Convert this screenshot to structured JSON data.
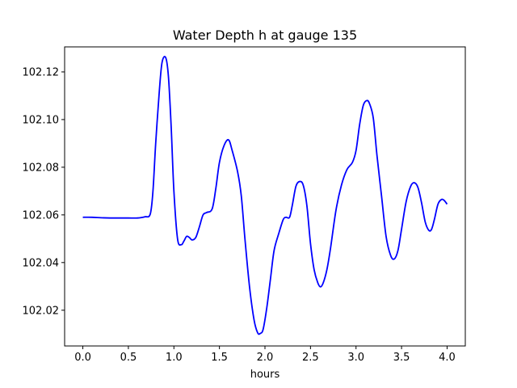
{
  "chart_data": {
    "type": "line",
    "title": "Water Depth h at gauge 135",
    "xlabel": "hours",
    "ylabel": "",
    "xlim": [
      -0.2,
      4.2
    ],
    "ylim": [
      102.005,
      102.1305
    ],
    "xticks": [
      0.0,
      0.5,
      1.0,
      1.5,
      2.0,
      2.5,
      3.0,
      3.5,
      4.0
    ],
    "xtick_labels": [
      "0.0",
      "0.5",
      "1.0",
      "1.5",
      "2.0",
      "2.5",
      "3.0",
      "3.5",
      "4.0"
    ],
    "yticks": [
      102.02,
      102.04,
      102.06,
      102.08,
      102.1,
      102.12
    ],
    "ytick_labels": [
      "102.02",
      "102.04",
      "102.06",
      "102.08",
      "102.10",
      "102.12"
    ],
    "grid": false,
    "series": [
      {
        "color": "#0000ff",
        "x": [
          0.0,
          0.1,
          0.2,
          0.3,
          0.4,
          0.5,
          0.6,
          0.68,
          0.74,
          0.77,
          0.8,
          0.84,
          0.87,
          0.91,
          0.94,
          0.97,
          1.0,
          1.04,
          1.08,
          1.11,
          1.14,
          1.17,
          1.2,
          1.24,
          1.28,
          1.32,
          1.36,
          1.42,
          1.46,
          1.5,
          1.55,
          1.6,
          1.64,
          1.7,
          1.74,
          1.78,
          1.83,
          1.88,
          1.92,
          1.95,
          1.98,
          2.02,
          2.06,
          2.1,
          2.15,
          2.2,
          2.23,
          2.27,
          2.3,
          2.34,
          2.38,
          2.42,
          2.46,
          2.5,
          2.54,
          2.58,
          2.61,
          2.64,
          2.68,
          2.72,
          2.78,
          2.84,
          2.9,
          2.96,
          3.0,
          3.04,
          3.08,
          3.12,
          3.15,
          3.19,
          3.23,
          3.28,
          3.33,
          3.38,
          3.42,
          3.46,
          3.5,
          3.55,
          3.6,
          3.64,
          3.68,
          3.72,
          3.76,
          3.8,
          3.83,
          3.86,
          3.9,
          3.94,
          3.97,
          4.0
        ],
        "y": [
          102.059,
          102.059,
          102.0588,
          102.0587,
          102.0587,
          102.0587,
          102.0587,
          102.0592,
          102.0603,
          102.07,
          102.09,
          102.112,
          102.124,
          102.126,
          102.118,
          102.097,
          102.07,
          102.05,
          102.0475,
          102.049,
          102.051,
          102.0505,
          102.0495,
          102.0505,
          102.055,
          102.06,
          102.061,
          102.0625,
          102.071,
          102.082,
          102.089,
          102.0915,
          102.087,
          102.078,
          102.068,
          102.05,
          102.03,
          102.016,
          102.0105,
          102.0103,
          102.012,
          102.021,
          102.033,
          102.045,
          102.052,
          102.058,
          102.059,
          102.059,
          102.064,
          102.072,
          102.074,
          102.0725,
          102.064,
          102.048,
          102.037,
          102.0315,
          102.0298,
          102.0315,
          102.037,
          102.046,
          102.062,
          102.0725,
          102.079,
          102.082,
          102.087,
          102.098,
          102.106,
          102.108,
          102.1065,
          102.1005,
          102.085,
          102.068,
          102.051,
          102.043,
          102.0415,
          102.045,
          102.054,
          102.0655,
          102.072,
          102.0735,
          102.0715,
          102.065,
          102.057,
          102.0535,
          102.054,
          102.058,
          102.0645,
          102.0665,
          102.066,
          102.0645
        ]
      }
    ]
  }
}
